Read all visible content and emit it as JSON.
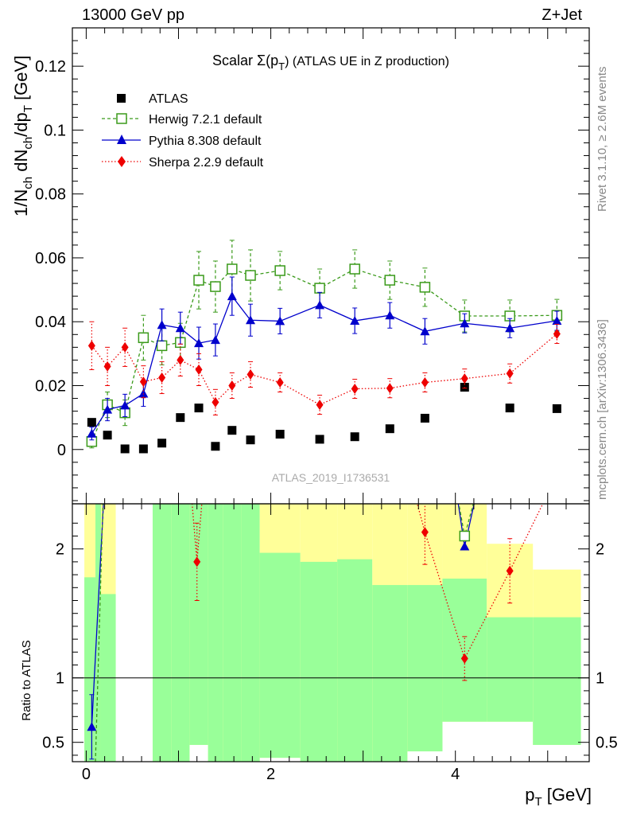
{
  "header": {
    "left": "13000 GeV pp",
    "right": "Z+Jet"
  },
  "title": {
    "main": "Scalar Σ(p",
    "sub": "T",
    "tail": ") (ATLAS UE in Z production)"
  },
  "side_labels": {
    "rivet": "Rivet 3.1.10, ≥ 2.6M events",
    "mcplots": "mcplots.cern.ch [arXiv:1306.3436]"
  },
  "watermark": "ATLAS_2019_I1736531",
  "axes": {
    "ylabel_upper": "1/N_ch dN_ch/dp_T [GeV]",
    "ylabel_lower": "Ratio to ATLAS",
    "xlabel": "p_T [GeV]"
  },
  "colors": {
    "data": "#000000",
    "herwig": "#3a9a1a",
    "pythia": "#0000cc",
    "sherpa": "#ee0000",
    "band_inner": "#99ff99",
    "band_outer": "#ffff99"
  },
  "chart_data": [
    {
      "type": "scatter",
      "panel": "main",
      "title": "Scalar Σ(p_T) (ATLAS UE in Z production)",
      "xlabel": "p_T [GeV]",
      "ylabel": "1/N_ch dN_ch/dp_T [GeV]",
      "xlim": [
        -0.15,
        5.45
      ],
      "ylim": [
        -0.017,
        0.132
      ],
      "x_ticks": [
        0,
        2,
        4
      ],
      "y_ticks": [
        0,
        0.02,
        0.04,
        0.06,
        0.08,
        0.1,
        0.12
      ],
      "y_tick_labels": [
        "0",
        "0.02",
        "0.04",
        "0.06",
        "0.08",
        "0.1",
        "0.12"
      ],
      "legend_position": "top-left",
      "x": [
        0.06,
        0.23,
        0.42,
        0.62,
        0.82,
        1.02,
        1.22,
        1.4,
        1.58,
        1.78,
        2.1,
        2.53,
        2.91,
        3.29,
        3.67,
        4.1,
        4.59,
        5.1
      ],
      "series": [
        {
          "name": "ATLAS",
          "style": "data",
          "values": [
            0.0085,
            0.0045,
            0.0002,
            0.0002,
            0.002,
            0.01,
            0.013,
            0.001,
            0.006,
            0.003,
            0.0048,
            0.0032,
            0.004,
            0.0065,
            0.0098,
            0.0195,
            0.013,
            0.0128
          ],
          "errors": [
            0,
            0,
            0,
            0,
            0,
            0,
            0,
            0,
            0,
            0,
            0,
            0,
            0,
            0,
            0,
            0,
            0,
            0
          ]
        },
        {
          "name": "Herwig 7.2.1 default",
          "style": "herwig",
          "values": [
            0.0025,
            0.014,
            0.0115,
            0.035,
            0.0325,
            0.0335,
            0.053,
            0.051,
            0.0565,
            0.0545,
            0.056,
            0.0505,
            0.0565,
            0.053,
            0.0508,
            0.0418,
            0.0418,
            0.042
          ],
          "errors": [
            0.002,
            0.004,
            0.004,
            0.007,
            0.006,
            0.006,
            0.009,
            0.008,
            0.009,
            0.008,
            0.006,
            0.006,
            0.006,
            0.006,
            0.006,
            0.005,
            0.005,
            0.005
          ]
        },
        {
          "name": "Pythia 8.308 default",
          "style": "pythia",
          "values": [
            0.005,
            0.0125,
            0.0138,
            0.0175,
            0.039,
            0.038,
            0.0333,
            0.0343,
            0.048,
            0.0405,
            0.0402,
            0.0452,
            0.0403,
            0.042,
            0.037,
            0.0395,
            0.038,
            0.0403
          ],
          "errors": [
            0.002,
            0.0035,
            0.0035,
            0.004,
            0.005,
            0.005,
            0.005,
            0.005,
            0.006,
            0.005,
            0.004,
            0.004,
            0.004,
            0.004,
            0.004,
            0.003,
            0.003,
            0.003
          ]
        },
        {
          "name": "Sherpa 2.2.9 default",
          "style": "sherpa",
          "values": [
            0.0325,
            0.026,
            0.032,
            0.0212,
            0.0225,
            0.028,
            0.025,
            0.0148,
            0.02,
            0.0235,
            0.021,
            0.014,
            0.019,
            0.0192,
            0.021,
            0.0222,
            0.0238,
            0.0362
          ],
          "errors": [
            0.0075,
            0.006,
            0.006,
            0.005,
            0.005,
            0.005,
            0.005,
            0.004,
            0.004,
            0.004,
            0.003,
            0.003,
            0.003,
            0.003,
            0.003,
            0.003,
            0.003,
            0.003
          ]
        }
      ]
    },
    {
      "type": "line",
      "panel": "ratio",
      "ylabel": "Ratio to ATLAS",
      "xlabel": "p_T [GeV]",
      "xlim": [
        -0.15,
        5.45
      ],
      "ylim": [
        0.35,
        2.35
      ],
      "y_ticks": [
        0.5,
        1,
        2
      ],
      "y_tick_labels": [
        "0.5",
        "1",
        "2"
      ],
      "x_ticks": [
        0,
        2,
        4
      ],
      "x_tick_labels": [
        "0",
        "2",
        "4"
      ],
      "bands": {
        "bin_edges": [
          -0.02,
          0.1,
          0.16,
          0.32,
          0.72,
          0.92,
          1.12,
          1.32,
          1.48,
          1.68,
          1.88,
          2.32,
          2.72,
          3.1,
          3.48,
          3.86,
          4.34,
          4.84,
          5.36
        ],
        "inner_low": [
          0.35,
          0.35,
          0.35,
          null,
          0.35,
          0.35,
          0.35,
          0.35,
          0.35,
          0.35,
          0.35,
          0.35,
          0.35,
          0.35,
          0.35,
          0.35,
          0.35,
          0.35
        ],
        "inner_high": [
          1.78,
          2.35,
          1.65,
          null,
          2.35,
          2.35,
          2.35,
          2.35,
          2.35,
          2.35,
          1.97,
          1.9,
          1.92,
          1.72,
          1.72,
          1.77,
          1.47,
          1.47
        ],
        "outer_low": [
          0.35,
          0.35,
          0.35,
          null,
          0.35,
          0.35,
          0.48,
          0.35,
          0.35,
          0.35,
          0.38,
          0.35,
          0.35,
          0.35,
          0.43,
          0.66,
          0.66,
          0.48
        ],
        "outer_high": [
          2.35,
          2.35,
          2.35,
          null,
          2.35,
          2.35,
          2.35,
          2.35,
          2.35,
          2.35,
          2.35,
          2.35,
          2.35,
          2.35,
          2.35,
          2.35,
          2.04,
          1.84
        ],
        "inner_outer_low": [
          0.35,
          0.35,
          0.35,
          null,
          0.35,
          0.35,
          0.48,
          0.35,
          0.35,
          0.35,
          0.38,
          0.35,
          0.35,
          0.35,
          0.43,
          0.66,
          0.66,
          0.48
        ]
      },
      "x": [
        0.06,
        0.1,
        1.2,
        3.67,
        4.1,
        4.59
      ],
      "series": [
        {
          "name": "Pythia 8.308 default",
          "style": "pythia",
          "points": [
            [
              0.06,
              0.62
            ],
            [
              0.22,
              2.8
            ]
          ],
          "errors": [
            0.25,
            0
          ],
          "extra_segment": [
            [
              4.0,
              2.5
            ],
            [
              4.1,
              2.02
            ],
            [
              4.25,
              2.5
            ]
          ]
        },
        {
          "name": "Herwig 7.2.1 default",
          "style": "herwig",
          "points": [
            [
              0.1,
              0.35
            ],
            [
              0.2,
              2.8
            ]
          ],
          "extra_segment": [
            [
              4.0,
              2.5
            ],
            [
              4.1,
              2.1
            ],
            [
              4.25,
              2.5
            ]
          ]
        },
        {
          "name": "Sherpa 2.2.9 default",
          "style": "sherpa",
          "points": [
            [
              1.13,
              2.5
            ],
            [
              1.2,
              1.9
            ],
            [
              1.27,
              2.5
            ],
            [
              3.53,
              2.5
            ],
            [
              3.67,
              2.13
            ],
            [
              4.1,
              1.15
            ],
            [
              4.59,
              1.83
            ],
            [
              5.05,
              2.5
            ]
          ],
          "marker_points": [
            [
              1.2,
              1.9
            ],
            [
              3.67,
              2.13
            ],
            [
              4.1,
              1.15
            ],
            [
              4.59,
              1.83
            ]
          ],
          "errors": [
            0.3,
            0.25,
            0.17,
            0.25
          ]
        }
      ]
    }
  ]
}
